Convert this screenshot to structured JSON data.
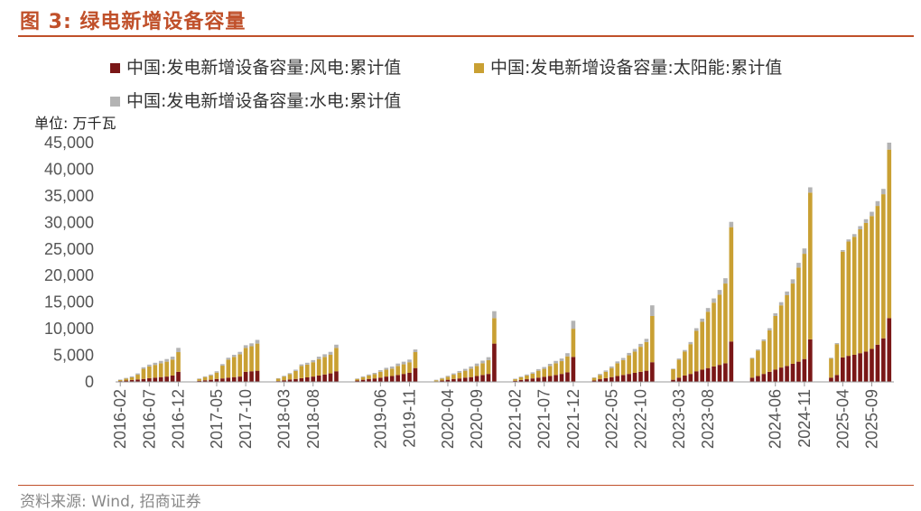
{
  "title": "图 3: 绿电新增设备容量",
  "source": "资料来源: Wind, 招商证券",
  "colors": {
    "accent": "#c0502a",
    "wind": "#7a1717",
    "solar": "#c9a033",
    "hydro": "#b3b3b3"
  },
  "chart_data": {
    "type": "bar",
    "stacked": true,
    "unit_label": "单位: 万千瓦",
    "ylim": [
      0,
      45000
    ],
    "yticks": [
      "0",
      "5,000",
      "10,000",
      "15,000",
      "20,000",
      "25,000",
      "30,000",
      "35,000",
      "40,000",
      "45,000"
    ],
    "xtick_labels": [
      "2016-02",
      "2016-07",
      "2016-12",
      "2017-05",
      "2017-10",
      "2018-03",
      "2018-08",
      "2019-01",
      "2019-06",
      "2019-11",
      "2020-04",
      "2020-09",
      "2021-02",
      "2021-07",
      "2021-12",
      "2022-05",
      "2022-10",
      "2023-03",
      "2023-08",
      "2024-01",
      "2024-06",
      "2024-11",
      "2025-04",
      "2025-09"
    ],
    "legend": [
      "中国:发电新增设备容量:风电:累计值",
      "中国:发电新增设备容量:太阳能:累计值",
      "中国:发电新增设备容量:水电:累计值"
    ],
    "legend_position": "top",
    "grid": false,
    "categories": [
      "2016-02",
      "2016-03",
      "2016-04",
      "2016-05",
      "2016-06",
      "2016-07",
      "2016-08",
      "2016-09",
      "2016-10",
      "2016-11",
      "2016-12",
      "2017-02",
      "2017-03",
      "2017-04",
      "2017-05",
      "2017-06",
      "2017-07",
      "2017-08",
      "2017-09",
      "2017-10",
      "2017-11",
      "2017-12",
      "2018-02",
      "2018-03",
      "2018-04",
      "2018-05",
      "2018-06",
      "2018-07",
      "2018-08",
      "2018-09",
      "2018-10",
      "2018-11",
      "2018-12",
      "2019-02",
      "2019-03",
      "2019-04",
      "2019-05",
      "2019-06",
      "2019-07",
      "2019-08",
      "2019-09",
      "2019-10",
      "2019-11",
      "2019-12",
      "2020-02",
      "2020-03",
      "2020-04",
      "2020-05",
      "2020-06",
      "2020-07",
      "2020-08",
      "2020-09",
      "2020-10",
      "2020-11",
      "2020-12",
      "2021-02",
      "2021-03",
      "2021-04",
      "2021-05",
      "2021-06",
      "2021-07",
      "2021-08",
      "2021-09",
      "2021-10",
      "2021-11",
      "2021-12",
      "2022-02",
      "2022-03",
      "2022-04",
      "2022-05",
      "2022-06",
      "2022-07",
      "2022-08",
      "2022-09",
      "2022-10",
      "2022-11",
      "2022-12",
      "2023-02",
      "2023-03",
      "2023-04",
      "2023-05",
      "2023-06",
      "2023-07",
      "2023-08",
      "2023-09",
      "2023-10",
      "2023-11",
      "2023-12",
      "2024-02",
      "2024-03",
      "2024-04",
      "2024-05",
      "2024-06",
      "2024-07",
      "2024-08",
      "2024-09",
      "2024-10",
      "2024-11",
      "2024-12",
      "2025-02",
      "2025-03",
      "2025-04",
      "2025-05",
      "2025-06",
      "2025-07",
      "2025-08",
      "2025-09",
      "2025-10",
      "2025-11",
      "2025-12"
    ],
    "series": [
      {
        "name": "中国:发电新增设备容量:风电:累计值",
        "values": [
          150,
          250,
          350,
          450,
          550,
          700,
          800,
          900,
          1000,
          1200,
          1900,
          200,
          300,
          400,
          550,
          650,
          800,
          900,
          1000,
          1900,
          2000,
          2100,
          150,
          300,
          450,
          550,
          700,
          850,
          1000,
          1200,
          1400,
          1600,
          2000,
          250,
          400,
          550,
          650,
          800,
          1000,
          1100,
          1300,
          1500,
          1700,
          2600,
          100,
          250,
          400,
          550,
          650,
          800,
          900,
          1100,
          1300,
          1500,
          7200,
          200,
          350,
          500,
          650,
          800,
          950,
          1100,
          1300,
          1500,
          1800,
          4700,
          250,
          500,
          700,
          900,
          1100,
          1300,
          1500,
          1700,
          1900,
          2100,
          3700,
          400,
          800,
          1200,
          1500,
          2000,
          2300,
          2600,
          2900,
          3200,
          3500,
          7600,
          800,
          1100,
          1500,
          1900,
          2300,
          2700,
          3000,
          3400,
          3800,
          4300,
          8000,
          800,
          1300,
          4600,
          4900,
          5100,
          5400,
          5700,
          6200,
          7000,
          8200,
          12000
        ]
      },
      {
        "name": "中国:发电新增设备容量:太阳能:累计值",
        "values": [
          200,
          350,
          500,
          900,
          1900,
          2200,
          2400,
          2600,
          2800,
          3000,
          3700,
          350,
          600,
          800,
          1200,
          2400,
          3400,
          3800,
          4200,
          4500,
          4700,
          5100,
          450,
          700,
          1000,
          1500,
          2300,
          2400,
          2700,
          3100,
          3300,
          3500,
          4400,
          300,
          500,
          650,
          800,
          1100,
          1300,
          1400,
          1700,
          1800,
          2000,
          3000,
          200,
          350,
          550,
          800,
          1100,
          1300,
          1600,
          1900,
          2200,
          2600,
          4800,
          300,
          500,
          700,
          900,
          1300,
          1500,
          1900,
          2200,
          2400,
          3000,
          5300,
          500,
          800,
          1200,
          1700,
          2400,
          2800,
          3500,
          4000,
          4700,
          5400,
          8700,
          2000,
          3400,
          4500,
          5600,
          7600,
          9000,
          10600,
          12000,
          13200,
          15000,
          21500,
          3600,
          4800,
          6200,
          7800,
          10100,
          11700,
          13300,
          15100,
          17700,
          19800,
          27600,
          3600,
          5800,
          19900,
          21500,
          22200,
          23300,
          24200,
          25000,
          26100,
          27100,
          31700
        ]
      },
      {
        "name": "中国:发电新增设备容量:水电:累计值",
        "values": [
          100,
          150,
          200,
          250,
          300,
          350,
          400,
          450,
          500,
          550,
          800,
          100,
          150,
          200,
          250,
          300,
          350,
          400,
          450,
          500,
          550,
          700,
          100,
          150,
          200,
          250,
          300,
          350,
          400,
          450,
          500,
          550,
          600,
          100,
          150,
          200,
          250,
          300,
          350,
          400,
          450,
          500,
          500,
          500,
          100,
          150,
          200,
          250,
          300,
          350,
          400,
          450,
          500,
          550,
          1300,
          100,
          150,
          200,
          250,
          300,
          350,
          400,
          450,
          500,
          600,
          1500,
          100,
          200,
          250,
          300,
          350,
          400,
          450,
          500,
          550,
          600,
          2000,
          100,
          200,
          300,
          400,
          500,
          600,
          700,
          800,
          900,
          1000,
          1000,
          150,
          200,
          300,
          400,
          500,
          600,
          700,
          800,
          900,
          1000,
          1000,
          150,
          200,
          300,
          400,
          500,
          600,
          700,
          800,
          900,
          1000,
          1300
        ]
      }
    ]
  }
}
